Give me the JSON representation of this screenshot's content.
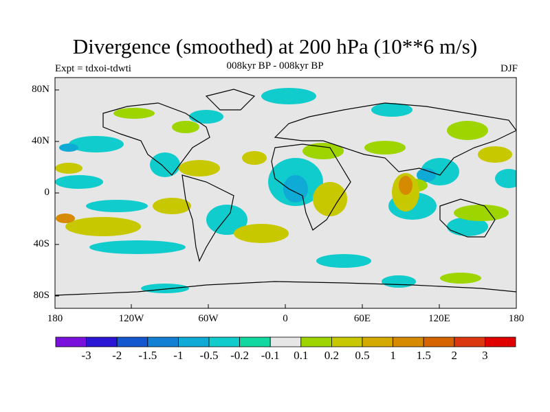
{
  "title": "Divergence (smoothed) at 200 hPa (10**6 m/s)",
  "subtitle": "008kyr BP - 008kyr BP",
  "experiment": "Expt = tdxoi-tdwti",
  "season": "DJF",
  "lat_labels": [
    "80N",
    "40N",
    "0",
    "40S",
    "80S"
  ],
  "lon_labels": [
    "180",
    "120W",
    "60W",
    "0",
    "60E",
    "120E",
    "180"
  ],
  "colorbar": {
    "colors": [
      "#7a10dc",
      "#2a16d4",
      "#1458d0",
      "#1480d4",
      "#10aad6",
      "#10cccc",
      "#10d8a0",
      "#e6e6e6",
      "#9ed500",
      "#c8c800",
      "#d4aa00",
      "#d68a00",
      "#d66400",
      "#dc3810",
      "#e00000"
    ],
    "labels": [
      "-3",
      "-2",
      "-1.5",
      "-1",
      "-0.5",
      "-0.2",
      "-0.1",
      "0.1",
      "0.2",
      "0.5",
      "1",
      "1.5",
      "2",
      "3"
    ]
  },
  "colors": {
    "background_field": "#e6e6e6",
    "coast": "#000000"
  }
}
